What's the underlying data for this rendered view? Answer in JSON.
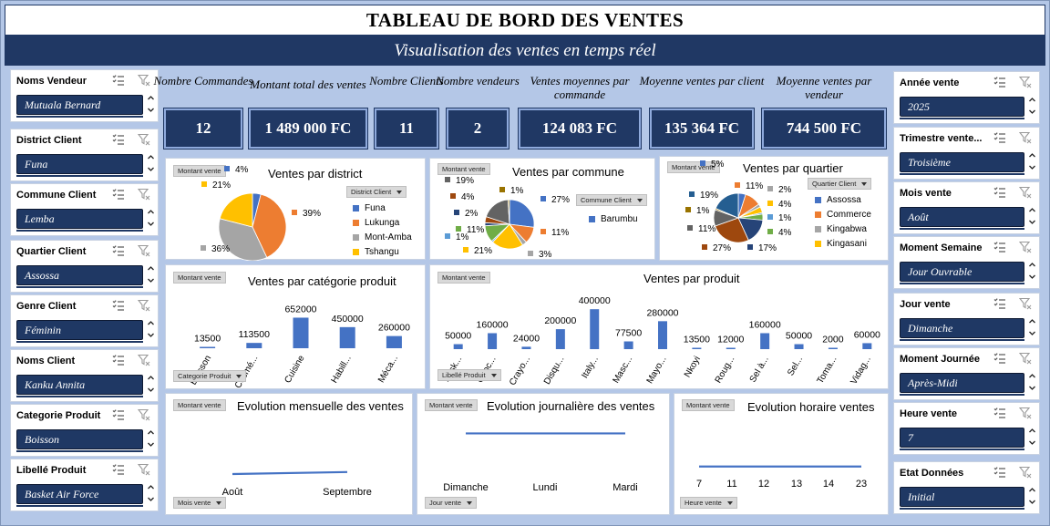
{
  "header": {
    "title": "TABLEAU DE BORD DES VENTES",
    "subtitle": "Visualisation des ventes en temps réel"
  },
  "slicers_left": [
    {
      "label": "Noms Vendeur",
      "value": "Mutuala Bernard"
    },
    {
      "label": "District Client",
      "value": "Funa"
    },
    {
      "label": "Commune Client",
      "value": "Lemba"
    },
    {
      "label": "Quartier Client",
      "value": "Assossa"
    },
    {
      "label": "Genre Client",
      "value": "Féminin"
    },
    {
      "label": "Noms Client",
      "value": "Kanku Annita"
    },
    {
      "label": "Categorie Produit",
      "value": "Boisson"
    },
    {
      "label": "Libellé Produit",
      "value": "Basket Air Force"
    }
  ],
  "slicers_right": [
    {
      "label": "Année vente",
      "value": "2025"
    },
    {
      "label": "Trimestre vente...",
      "value": "Troisième"
    },
    {
      "label": "Mois vente",
      "value": "Août"
    },
    {
      "label": "Moment Semaine",
      "value": "Jour Ouvrable"
    },
    {
      "label": "Jour vente",
      "value": "Dimanche"
    },
    {
      "label": "Moment Journée",
      "value": "Après-Midi"
    },
    {
      "label": "Heure vente",
      "value": "7"
    },
    {
      "label": "Etat Données",
      "value": "Initial"
    }
  ],
  "kpis": [
    {
      "label": "Nombre Commandes",
      "value": "12"
    },
    {
      "label": "Montant total des ventes",
      "value": "1 489 000 FC"
    },
    {
      "label": "Nombre Clients",
      "value": "11"
    },
    {
      "label": "Nombre vendeurs",
      "value": "2"
    },
    {
      "label": "Ventes moyennes par commande",
      "value": "124 083 FC"
    },
    {
      "label": "Moyenne ventes par client",
      "value": "135 364 FC"
    },
    {
      "label": "Moyenne ventes par vendeur",
      "value": "744 500 FC"
    }
  ],
  "pivot": {
    "value_field": "Montant vente"
  },
  "colors": {
    "dark_blue": "#203864",
    "background": "#b4c7e7",
    "bar": "#4472c4"
  },
  "chart_data": [
    {
      "id": "district",
      "type": "pie",
      "title": "Ventes par district",
      "filter_button": "District Client",
      "categories": [
        "Funa",
        "Lukunga",
        "Mont-Amba",
        "Tshangu"
      ],
      "values": [
        4,
        39,
        36,
        21
      ],
      "labels": [
        "4%",
        "39%",
        "36%",
        "21%"
      ],
      "colors": [
        "#4472c4",
        "#ed7d31",
        "#a5a5a5",
        "#ffc000"
      ],
      "legend_position": "right"
    },
    {
      "id": "commune",
      "type": "pie",
      "title": "Ventes par commune",
      "filter_button": "Commune Client",
      "legend": [
        "Barumbu"
      ],
      "values": [
        27,
        11,
        3,
        21,
        1,
        11,
        2,
        4,
        19,
        1
      ],
      "labels": [
        "27%",
        "11%",
        "3%",
        "21%",
        "1%",
        "11%",
        "2%",
        "4%",
        "19%",
        "1%"
      ],
      "colors": [
        "#4472c4",
        "#ed7d31",
        "#a5a5a5",
        "#ffc000",
        "#5b9bd5",
        "#70ad47",
        "#264478",
        "#9e480e",
        "#636363",
        "#997300"
      ],
      "legend_position": "right"
    },
    {
      "id": "quartier",
      "type": "pie",
      "title": "Ventes par quartier",
      "filter_button": "Quartier Client",
      "legend": [
        "Assossa",
        "Commerce",
        "Kingabwa",
        "Kingasani"
      ],
      "values": [
        5,
        11,
        2,
        4,
        1,
        4,
        17,
        27,
        11,
        1,
        19
      ],
      "labels": [
        "5%",
        "11%",
        "2%",
        "4%",
        "1%",
        "4%",
        "17%",
        "27%",
        "11%",
        "1%",
        "19%"
      ],
      "colors": [
        "#4472c4",
        "#ed7d31",
        "#a5a5a5",
        "#ffc000",
        "#5b9bd5",
        "#70ad47",
        "#264478",
        "#9e480e",
        "#636363",
        "#997300",
        "#255e91"
      ],
      "legend_position": "right"
    },
    {
      "id": "categorie",
      "type": "bar",
      "title": "Ventes par catégorie produit",
      "filter_button": "Categorie Produit",
      "categories": [
        "Boisson",
        "Cosmé...",
        "Cuisine",
        "Habill...",
        "Méca..."
      ],
      "values": [
        13500,
        113500,
        652000,
        450000,
        260000
      ],
      "ylim": [
        0,
        700000
      ]
    },
    {
      "id": "produit",
      "type": "bar",
      "title": "Ventes par produit",
      "filter_button": "Libellé Produit",
      "categories": [
        "Bask...",
        "Choc...",
        "Crayo...",
        "Disqu...",
        "Italy...",
        "Masc...",
        "Mayo...",
        "Nkoyi",
        "Roug...",
        "Sel à...",
        "Sel...",
        "Toma...",
        "Vidag..."
      ],
      "values": [
        50000,
        160000,
        24000,
        200000,
        400000,
        77500,
        280000,
        13500,
        12000,
        160000,
        50000,
        2000,
        60000
      ],
      "ylim": [
        0,
        420000
      ]
    },
    {
      "id": "mensuelle",
      "type": "line",
      "title": "Evolution mensuelle des ventes",
      "filter_button": "Mois vente",
      "categories": [
        "Août",
        "Septembre"
      ],
      "values": [
        1,
        1.1
      ],
      "ylim": [
        0,
        1.5
      ]
    },
    {
      "id": "journaliere",
      "type": "line",
      "title": "Evolution journalière des ventes",
      "filter_button": "Jour vente",
      "categories": [
        "Dimanche",
        "Lundi",
        "Mardi"
      ],
      "values": [
        1,
        1,
        1
      ],
      "ylim": [
        0,
        1.3
      ]
    },
    {
      "id": "horaire",
      "type": "line",
      "title": "Evolution horaire ventes",
      "filter_button": "Heure vente",
      "categories": [
        "7",
        "11",
        "12",
        "13",
        "14",
        "23"
      ],
      "values": [
        1,
        1,
        1,
        1,
        1,
        1
      ],
      "ylim": [
        0,
        1.6
      ]
    }
  ]
}
